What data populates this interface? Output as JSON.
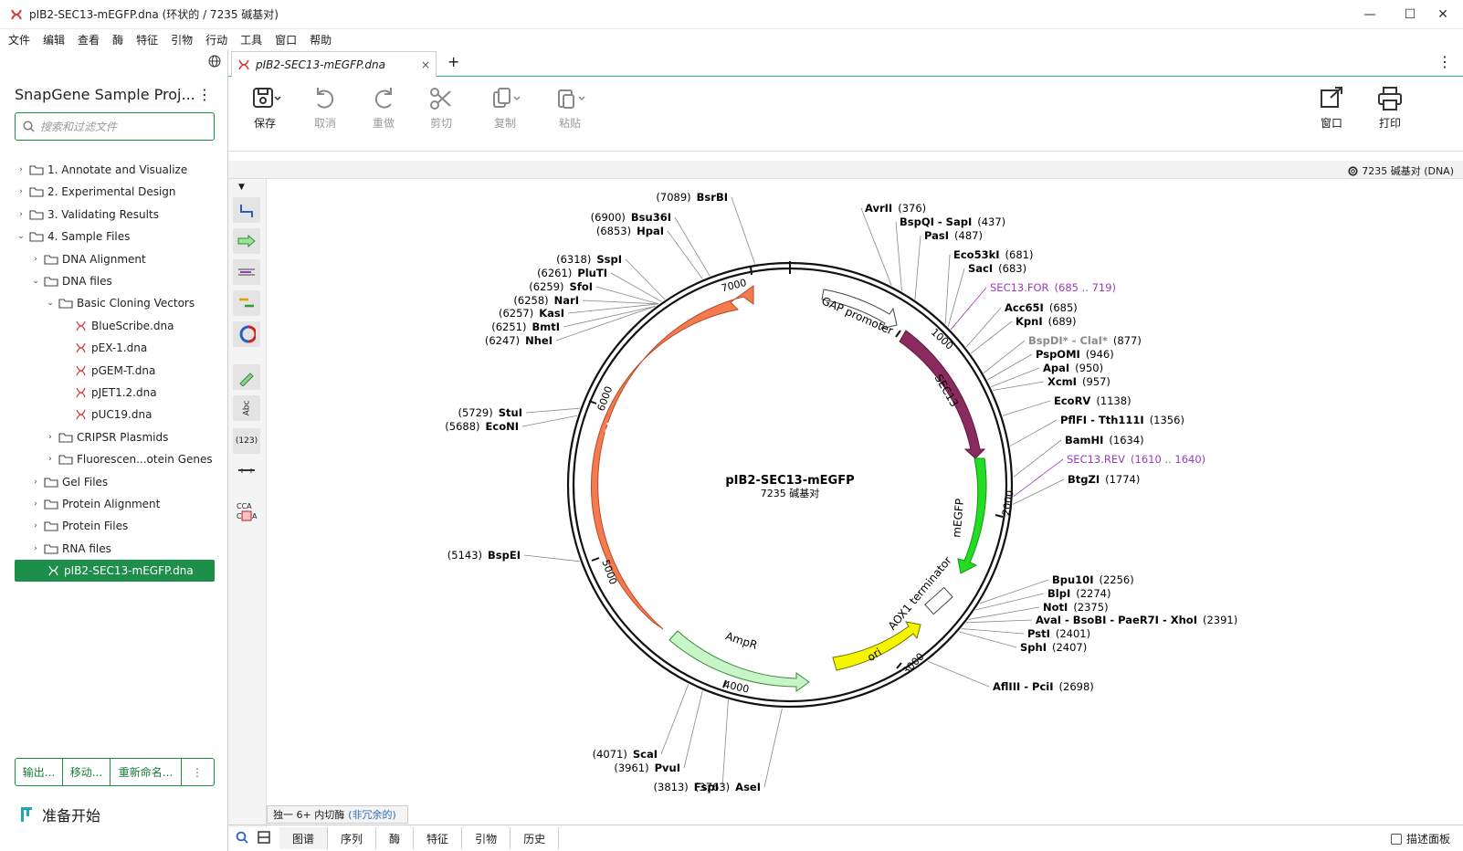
{
  "window": {
    "title": "pIB2-SEC13-mEGFP.dna  (环状的 / 7235 碱基对)",
    "minimize": "—",
    "maximize": "☐",
    "close": "✕"
  },
  "menu": [
    "文件",
    "编辑",
    "查看",
    "酶",
    "特征",
    "引物",
    "行动",
    "工具",
    "窗口",
    "帮助"
  ],
  "project": {
    "title": "SnapGene Sample Proj...",
    "more": "⋮",
    "search_placeholder": "搜索和过滤文件"
  },
  "tree": [
    {
      "label": "1. Annotate and Visualize",
      "indent": 0,
      "chev": "›",
      "icon": "folder"
    },
    {
      "label": "2. Experimental Design",
      "indent": 0,
      "chev": "›",
      "icon": "folder"
    },
    {
      "label": "3. Validating Results",
      "indent": 0,
      "chev": "›",
      "icon": "folder"
    },
    {
      "label": "4. Sample Files",
      "indent": 0,
      "chev": "⌄",
      "icon": "folder"
    },
    {
      "label": "DNA Alignment",
      "indent": 1,
      "chev": "›",
      "icon": "folder"
    },
    {
      "label": "DNA files",
      "indent": 1,
      "chev": "⌄",
      "icon": "folder"
    },
    {
      "label": "Basic Cloning Vectors",
      "indent": 2,
      "chev": "⌄",
      "icon": "folder"
    },
    {
      "label": "BlueScribe.dna",
      "indent": 3,
      "chev": "",
      "icon": "dna"
    },
    {
      "label": "pEX-1.dna",
      "indent": 3,
      "chev": "",
      "icon": "dna"
    },
    {
      "label": "pGEM-T.dna",
      "indent": 3,
      "chev": "",
      "icon": "dna"
    },
    {
      "label": "pJET1.2.dna",
      "indent": 3,
      "chev": "",
      "icon": "dna"
    },
    {
      "label": "pUC19.dna",
      "indent": 3,
      "chev": "",
      "icon": "dna"
    },
    {
      "label": "CRIPSR Plasmids",
      "indent": 2,
      "chev": "›",
      "icon": "folder"
    },
    {
      "label": "Fluorescen...otein Genes",
      "indent": 2,
      "chev": "›",
      "icon": "folder"
    },
    {
      "label": "Gel Files",
      "indent": 1,
      "chev": "›",
      "icon": "folder"
    },
    {
      "label": "Protein Alignment",
      "indent": 1,
      "chev": "›",
      "icon": "folder"
    },
    {
      "label": "Protein Files",
      "indent": 1,
      "chev": "›",
      "icon": "folder"
    },
    {
      "label": "RNA files",
      "indent": 1,
      "chev": "›",
      "icon": "folder"
    },
    {
      "label": "pIB2-SEC13-mEGFP.dna",
      "indent": 1,
      "chev": "",
      "icon": "dna",
      "selected": true
    }
  ],
  "bottom_buttons": {
    "export": "输出...",
    "move": "移动...",
    "rename": "重新命名...",
    "more": "⋮"
  },
  "status": "准备开始",
  "tab": {
    "label": "pIB2-SEC13-mEGFP.dna",
    "close": "×",
    "add": "+",
    "more": "⋮"
  },
  "toolbar": {
    "save": "保存",
    "undo": "取消",
    "redo": "重做",
    "cut": "剪切",
    "copy": "复制",
    "paste": "粘贴",
    "window": "窗口",
    "print": "打印"
  },
  "info": {
    "length": "7235 碱基对 (DNA)"
  },
  "map": {
    "name": "pIB2-SEC13-mEGFP",
    "length_label": "7235 碱基对",
    "ticks": [
      "1000",
      "2000",
      "3000",
      "4000",
      "5000",
      "6000",
      "7000"
    ],
    "features": {
      "gap": "GAP promoter",
      "sec13": "SEC13",
      "megfp": "mEGFP",
      "aox1": "AOX1 terminator",
      "ori": "ori",
      "ampr": "AmpR",
      "pphis4": "PpHIS4"
    },
    "sites_right": [
      {
        "name": "AvrII",
        "pos": "(376)"
      },
      {
        "name": "BspQI - SapI",
        "pos": "(437)"
      },
      {
        "name": "PasI",
        "pos": "(487)"
      },
      {
        "name": "Eco53kI",
        "pos": "(681)"
      },
      {
        "name": "SacI",
        "pos": "(683)"
      },
      {
        "name": "SEC13.FOR",
        "pos": "(685 .. 719)"
      },
      {
        "name": "Acc65I",
        "pos": "(685)"
      },
      {
        "name": "KpnI",
        "pos": "(689)"
      },
      {
        "name": "BspDI* - ClaI*",
        "pos": "(877)"
      },
      {
        "name": "PspOMI",
        "pos": "(946)"
      },
      {
        "name": "ApaI",
        "pos": "(950)"
      },
      {
        "name": "XcmI",
        "pos": "(957)"
      },
      {
        "name": "EcoRV",
        "pos": "(1138)"
      },
      {
        "name": "PflFI - Tth111I",
        "pos": "(1356)"
      },
      {
        "name": "BamHI",
        "pos": "(1634)"
      },
      {
        "name": "SEC13.REV",
        "pos": "(1610 .. 1640)"
      },
      {
        "name": "BtgZI",
        "pos": "(1774)"
      },
      {
        "name": "Bpu10I",
        "pos": "(2256)"
      },
      {
        "name": "BlpI",
        "pos": "(2274)"
      },
      {
        "name": "NotI",
        "pos": "(2375)"
      },
      {
        "name": "AvaI - BsoBI - PaeR7I - XhoI",
        "pos": "(2391)"
      },
      {
        "name": "PstI",
        "pos": "(2401)"
      },
      {
        "name": "SphI",
        "pos": "(2407)"
      },
      {
        "name": "AflIII - PciI",
        "pos": "(2698)"
      }
    ],
    "sites_left": [
      {
        "name": "BsrBI",
        "pos": "(7089)"
      },
      {
        "name": "Bsu36I",
        "pos": "(6900)"
      },
      {
        "name": "HpaI",
        "pos": "(6853)"
      },
      {
        "name": "SspI",
        "pos": "(6318)"
      },
      {
        "name": "PluTI",
        "pos": "(6261)"
      },
      {
        "name": "SfoI",
        "pos": "(6259)"
      },
      {
        "name": "NarI",
        "pos": "(6258)"
      },
      {
        "name": "KasI",
        "pos": "(6257)"
      },
      {
        "name": "BmtI",
        "pos": "(6251)"
      },
      {
        "name": "NheI",
        "pos": "(6247)"
      },
      {
        "name": "StuI",
        "pos": "(5729)"
      },
      {
        "name": "EcoNI",
        "pos": "(5688)"
      },
      {
        "name": "BspEI",
        "pos": "(5143)"
      },
      {
        "name": "ScaI",
        "pos": "(4071)"
      },
      {
        "name": "PvuI",
        "pos": "(3961)"
      },
      {
        "name": "FspI",
        "pos": "(3813)"
      },
      {
        "name": "AseI",
        "pos": "(3763)"
      }
    ]
  },
  "enzymes_bar": {
    "text": "独一 6+ 内切酶",
    "link": "(非冗余的)"
  },
  "bottom_tabs": [
    "图谱",
    "序列",
    "酶",
    "特征",
    "引物",
    "历史"
  ],
  "describe_panel": "描述面板",
  "colors": {
    "accent": "#1e8f4a",
    "pphis4": "#f47a4f",
    "sec13": "#8b2a5e",
    "megfp": "#22dd22",
    "ori": "#f5f500",
    "ampr": "#c8f5c8",
    "primer": "#9b3bbd"
  }
}
